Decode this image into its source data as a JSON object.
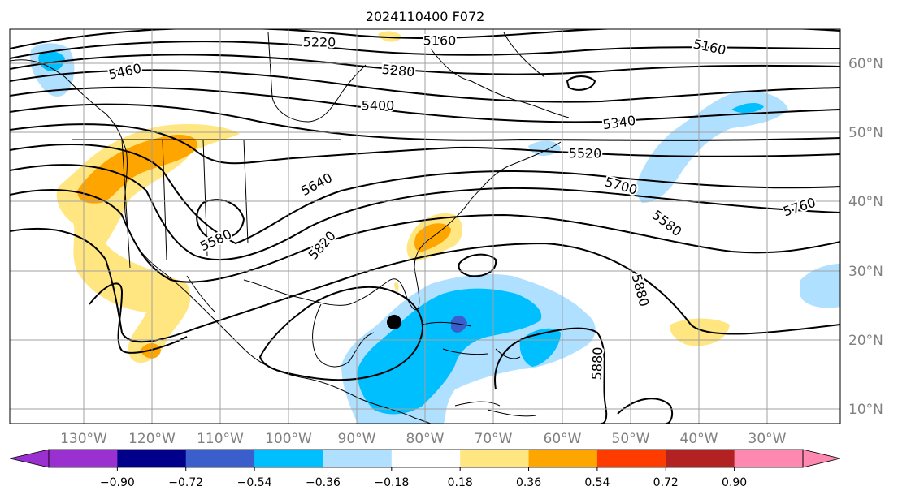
{
  "title": "2024110400 F072",
  "map": {
    "lon_labels": [
      "130°W",
      "120°W",
      "110°W",
      "100°W",
      "90°W",
      "80°W",
      "70°W",
      "60°W",
      "50°W",
      "40°W",
      "30°W"
    ],
    "lat_labels": [
      "60°N",
      "50°N",
      "40°N",
      "30°N",
      "20°N",
      "10°N"
    ],
    "grid": true,
    "contour_labels": [
      "5220",
      "5160",
      "5160",
      "5460",
      "5280",
      "5400",
      "5340",
      "5520",
      "5640",
      "5700",
      "5580",
      "5760",
      "5580",
      "5820",
      "5880",
      "5880"
    ],
    "storm_marker": "black-dot",
    "colors": {
      "contour": "#000000",
      "coast": "#000000",
      "grid": "#a0a0a0",
      "axis_label": "#808080"
    }
  },
  "colorbar": {
    "tick_labels": [
      "−0.90",
      "−0.72",
      "−0.54",
      "−0.36",
      "−0.18",
      "0.18",
      "0.36",
      "0.54",
      "0.72",
      "0.90"
    ],
    "colors": [
      "#9b30d0",
      "#00008b",
      "#3a5fcd",
      "#00bfff",
      "#b0e0ff",
      "#ffffff",
      "#ffe680",
      "#ffa500",
      "#ff3c00",
      "#b22222",
      "#ff88b0"
    ]
  }
}
